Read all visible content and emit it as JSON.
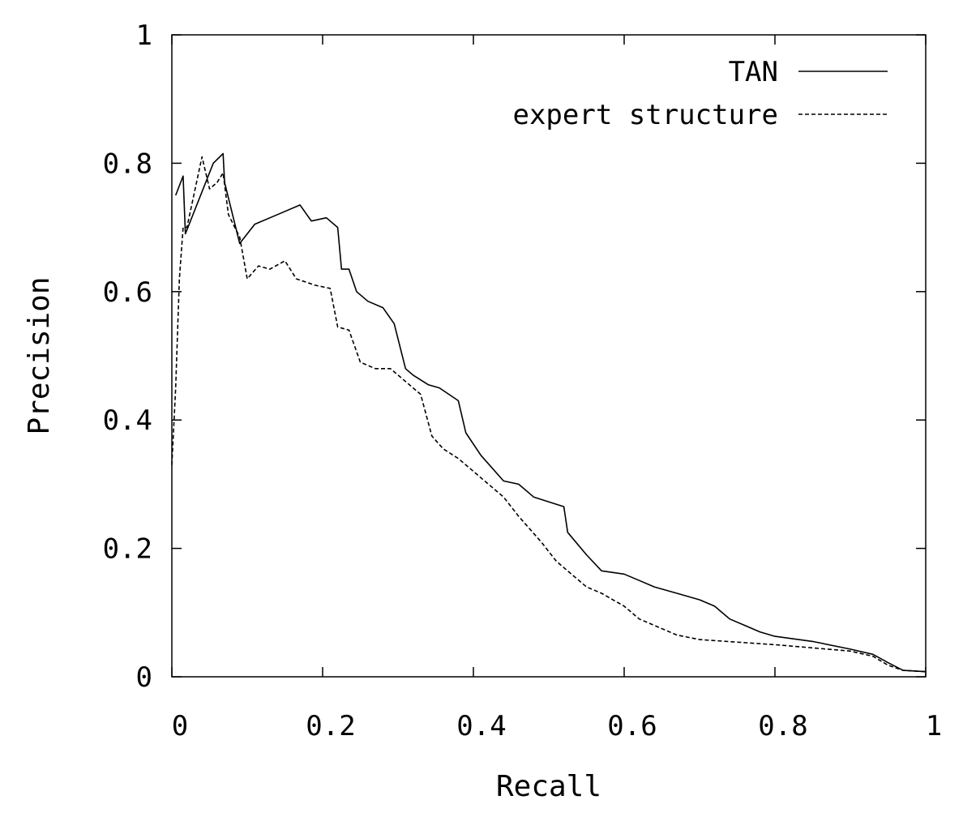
{
  "chart_data": {
    "type": "line",
    "title": "",
    "xlabel": "Recall",
    "ylabel": "Precision",
    "xlim": [
      0,
      1
    ],
    "ylim": [
      0,
      1
    ],
    "xticks": [
      "0",
      "0.2",
      "0.4",
      "0.6",
      "0.8",
      "1"
    ],
    "yticks": [
      "0",
      "0.2",
      "0.4",
      "0.6",
      "0.8",
      "1"
    ],
    "grid": false,
    "legend": "top-right",
    "series": [
      {
        "name": "TAN",
        "style": "solid",
        "color": "#000000",
        "points": [
          [
            0.005,
            0.75
          ],
          [
            0.015,
            0.78
          ],
          [
            0.018,
            0.69
          ],
          [
            0.055,
            0.8
          ],
          [
            0.068,
            0.815
          ],
          [
            0.07,
            0.77
          ],
          [
            0.09,
            0.675
          ],
          [
            0.11,
            0.705
          ],
          [
            0.14,
            0.72
          ],
          [
            0.17,
            0.735
          ],
          [
            0.185,
            0.71
          ],
          [
            0.205,
            0.715
          ],
          [
            0.22,
            0.7
          ],
          [
            0.225,
            0.635
          ],
          [
            0.235,
            0.635
          ],
          [
            0.245,
            0.6
          ],
          [
            0.26,
            0.585
          ],
          [
            0.28,
            0.575
          ],
          [
            0.295,
            0.55
          ],
          [
            0.31,
            0.48
          ],
          [
            0.32,
            0.47
          ],
          [
            0.34,
            0.455
          ],
          [
            0.355,
            0.45
          ],
          [
            0.38,
            0.43
          ],
          [
            0.39,
            0.38
          ],
          [
            0.41,
            0.345
          ],
          [
            0.44,
            0.305
          ],
          [
            0.46,
            0.3
          ],
          [
            0.48,
            0.28
          ],
          [
            0.52,
            0.265
          ],
          [
            0.525,
            0.225
          ],
          [
            0.55,
            0.19
          ],
          [
            0.57,
            0.165
          ],
          [
            0.6,
            0.16
          ],
          [
            0.62,
            0.15
          ],
          [
            0.64,
            0.14
          ],
          [
            0.67,
            0.13
          ],
          [
            0.7,
            0.12
          ],
          [
            0.72,
            0.11
          ],
          [
            0.74,
            0.09
          ],
          [
            0.76,
            0.08
          ],
          [
            0.78,
            0.07
          ],
          [
            0.8,
            0.063
          ],
          [
            0.85,
            0.055
          ],
          [
            0.9,
            0.043
          ],
          [
            0.93,
            0.035
          ],
          [
            0.95,
            0.022
          ],
          [
            0.97,
            0.01
          ],
          [
            1.0,
            0.008
          ]
        ]
      },
      {
        "name": "expert structure",
        "style": "dashed",
        "color": "#000000",
        "points": [
          [
            0.0,
            0.33
          ],
          [
            0.005,
            0.45
          ],
          [
            0.01,
            0.62
          ],
          [
            0.015,
            0.7
          ],
          [
            0.02,
            0.7
          ],
          [
            0.04,
            0.81
          ],
          [
            0.05,
            0.76
          ],
          [
            0.06,
            0.77
          ],
          [
            0.068,
            0.785
          ],
          [
            0.075,
            0.72
          ],
          [
            0.09,
            0.685
          ],
          [
            0.1,
            0.62
          ],
          [
            0.115,
            0.64
          ],
          [
            0.13,
            0.635
          ],
          [
            0.15,
            0.648
          ],
          [
            0.165,
            0.62
          ],
          [
            0.19,
            0.61
          ],
          [
            0.21,
            0.605
          ],
          [
            0.22,
            0.545
          ],
          [
            0.235,
            0.54
          ],
          [
            0.25,
            0.49
          ],
          [
            0.27,
            0.48
          ],
          [
            0.29,
            0.48
          ],
          [
            0.31,
            0.46
          ],
          [
            0.33,
            0.44
          ],
          [
            0.345,
            0.375
          ],
          [
            0.36,
            0.355
          ],
          [
            0.38,
            0.34
          ],
          [
            0.42,
            0.3
          ],
          [
            0.44,
            0.28
          ],
          [
            0.46,
            0.25
          ],
          [
            0.49,
            0.21
          ],
          [
            0.51,
            0.18
          ],
          [
            0.53,
            0.16
          ],
          [
            0.55,
            0.14
          ],
          [
            0.57,
            0.13
          ],
          [
            0.6,
            0.11
          ],
          [
            0.62,
            0.09
          ],
          [
            0.64,
            0.08
          ],
          [
            0.67,
            0.065
          ],
          [
            0.7,
            0.058
          ],
          [
            0.8,
            0.05
          ],
          [
            0.9,
            0.04
          ],
          [
            0.93,
            0.032
          ],
          [
            0.95,
            0.018
          ],
          [
            0.97,
            0.01
          ],
          [
            1.0,
            0.008
          ]
        ]
      }
    ]
  }
}
